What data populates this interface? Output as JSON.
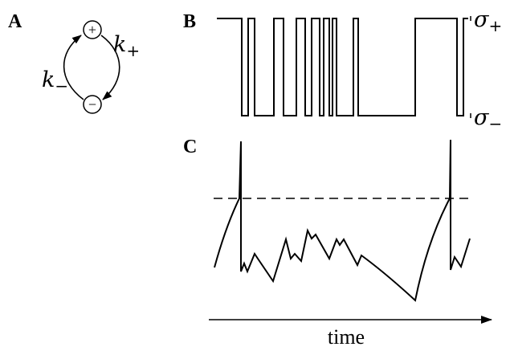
{
  "panels": {
    "a": {
      "label": "A",
      "plus_symbol": "+",
      "minus_symbol": "−",
      "k_plus_base": "k",
      "k_plus_sub": "+",
      "k_minus_base": "k",
      "k_minus_sub": "−"
    },
    "b": {
      "label": "B",
      "sigma_plus_base": "σ",
      "sigma_plus_sub": "+",
      "sigma_minus_base": "σ",
      "sigma_minus_sub": "−"
    },
    "c": {
      "label": "C"
    }
  },
  "time_axis": {
    "label": "time"
  },
  "colors": {
    "ink": "#000000",
    "background": "#ffffff"
  }
}
